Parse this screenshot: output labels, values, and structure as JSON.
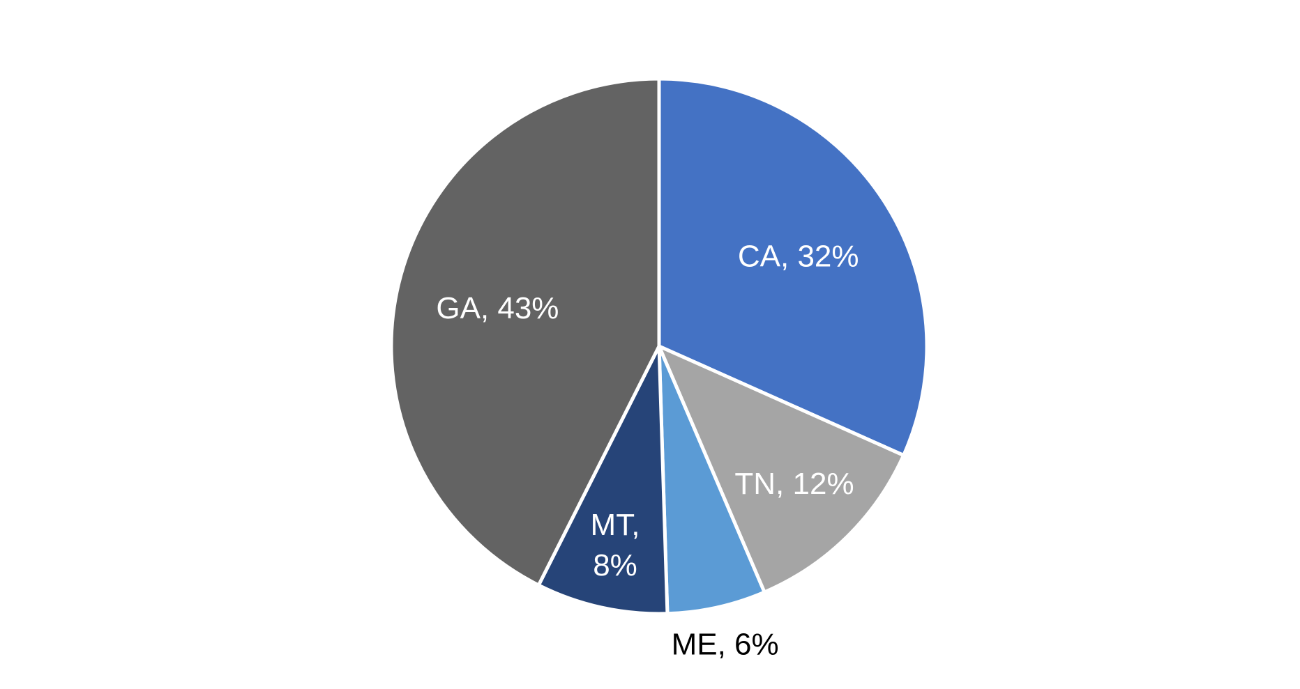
{
  "chart_data": {
    "type": "pie",
    "title": "",
    "start_angle_deg": 0,
    "direction": "clockwise",
    "slices": [
      {
        "key": "ca",
        "label": "CA",
        "value": 32,
        "display": "CA, 32%",
        "color": "#4472C4",
        "label_color": "#FFFFFF",
        "label_lines": [
          "CA, 32%"
        ]
      },
      {
        "key": "tn",
        "label": "TN",
        "value": 12,
        "display": "TN, 12%",
        "color": "#A5A5A5",
        "label_color": "#FFFFFF",
        "label_lines": [
          "TN, 12%"
        ]
      },
      {
        "key": "me",
        "label": "ME",
        "value": 6,
        "display": "ME, 6%",
        "color": "#5B9BD5",
        "label_color": "#000000",
        "label_lines": [
          "ME, 6%"
        ]
      },
      {
        "key": "mt",
        "label": "MT",
        "value": 8,
        "display": "MT, 8%",
        "color": "#264478",
        "label_color": "#FFFFFF",
        "label_lines": [
          "MT,",
          "8%"
        ]
      },
      {
        "key": "ga",
        "label": "GA",
        "value": 43,
        "display": "GA, 43%",
        "color": "#636363",
        "label_color": "#FFFFFF",
        "label_lines": [
          "GA, 43%"
        ]
      }
    ]
  }
}
